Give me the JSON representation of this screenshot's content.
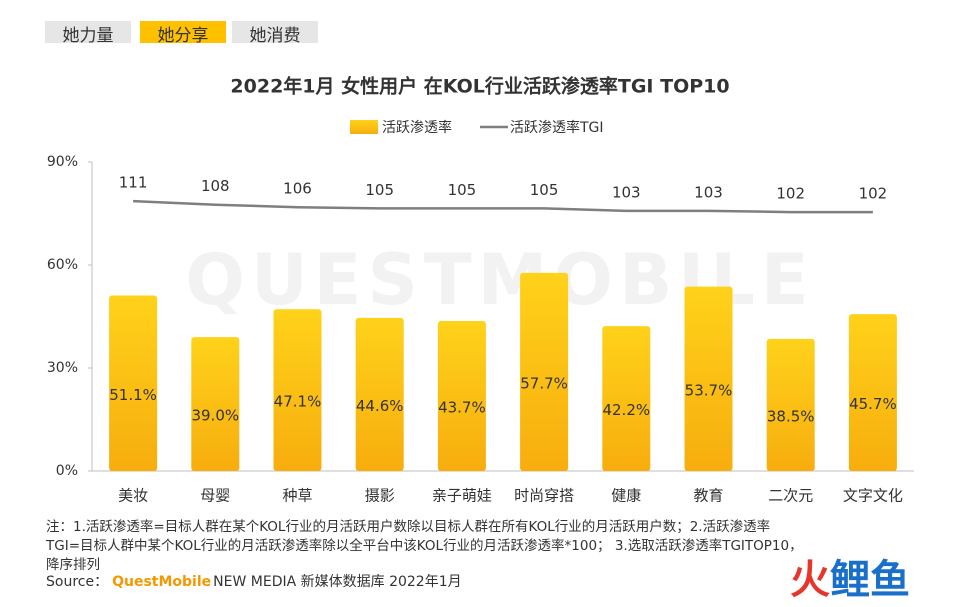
{
  "tabs": [
    "她力量",
    "她分享",
    "她消费"
  ],
  "active_tab": 1,
  "watermark": "QUESTMOBILE",
  "chart_data": {
    "type": "bar",
    "title": "2022年1月 女性用户 在KOL行业活跃渗透率TGI TOP10",
    "categories": [
      "美妆",
      "母婴",
      "种草",
      "摄影",
      "亲子萌娃",
      "时尚穿搭",
      "健康",
      "教育",
      "二次元",
      "文字文化"
    ],
    "series": [
      {
        "name": "活跃渗透率",
        "type": "bar",
        "color": "#ffc000",
        "values": [
          51.1,
          39.0,
          47.1,
          44.6,
          43.7,
          57.7,
          42.2,
          53.7,
          38.5,
          45.7
        ],
        "value_labels": [
          "51.1%",
          "39.0%",
          "47.1%",
          "44.6%",
          "43.7%",
          "57.7%",
          "42.2%",
          "53.7%",
          "38.5%",
          "45.7%"
        ]
      },
      {
        "name": "活跃渗透率TGI",
        "type": "line",
        "axis": "y2",
        "color": "#7f7f7f",
        "values": [
          111,
          108,
          106,
          105,
          105,
          105,
          103,
          103,
          102,
          102
        ]
      }
    ],
    "ylim": [
      0,
      90
    ],
    "yticks": [
      {
        "value": 0,
        "label": "0%"
      },
      {
        "value": 30,
        "label": "30%"
      },
      {
        "value": 60,
        "label": "60%"
      },
      {
        "value": 90,
        "label": "90%"
      }
    ],
    "y2lim": [
      -110,
      143
    ],
    "legend": "top"
  },
  "notes": [
    "注：1.活跃渗透率=目标人群在某个KOL行业的月活跃用户数除以目标人群在所有KOL行业的月活跃用户数；2.活跃渗透率",
    "TGI=目标人群中某个KOL行业的月活跃渗透率除以全平台中该KOL行业的月活跃渗透率*100；  3.选取活跃渗透率TGITOP10，",
    "降序排列"
  ],
  "source": {
    "label": "Source：",
    "brand": "QuestMobile",
    "text": "NEW MEDIA 新媒体数据库 2022年1月"
  },
  "logo": [
    "火",
    "鲤鱼"
  ]
}
